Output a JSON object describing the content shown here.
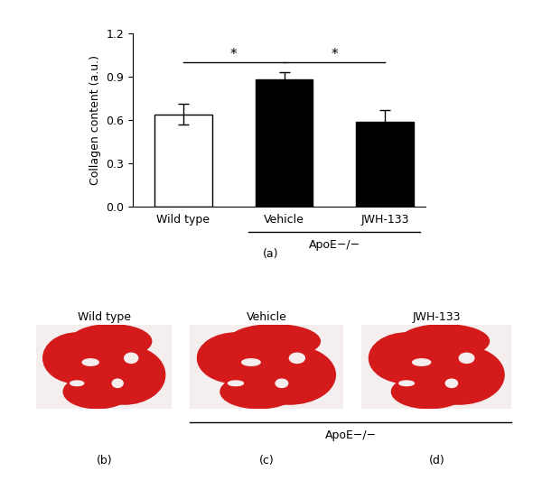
{
  "chart_data": {
    "type": "bar",
    "categories": [
      "Wild type",
      "Vehicle",
      "JWH-133"
    ],
    "values": [
      0.64,
      0.88,
      0.59
    ],
    "errors": [
      0.07,
      0.05,
      0.08
    ],
    "colors": [
      "#ffffff",
      "#000000",
      "#000000"
    ],
    "y_label": "Collagen content (a.u.)",
    "ylim": [
      0.0,
      1.2
    ],
    "yticks": [
      0.0,
      0.3,
      0.6,
      0.9,
      1.2
    ],
    "grid": false,
    "group": {
      "label": "ApoE−/−",
      "categories": [
        "Vehicle",
        "JWH-133"
      ]
    },
    "comparisons": [
      {
        "from": "Wild type",
        "to": "Vehicle",
        "label": "*"
      },
      {
        "from": "Vehicle",
        "to": "JWH-133",
        "label": "*"
      }
    ],
    "panel_label": "(a)"
  },
  "images": [
    {
      "title": "Wild type",
      "panel_label": "(b)"
    },
    {
      "title": "Vehicle",
      "panel_label": "(c)"
    },
    {
      "title": "JWH-133",
      "panel_label": "(d)"
    }
  ],
  "image_group": {
    "label": "ApoE−/−",
    "panels": [
      "(c)",
      "(d)"
    ]
  }
}
